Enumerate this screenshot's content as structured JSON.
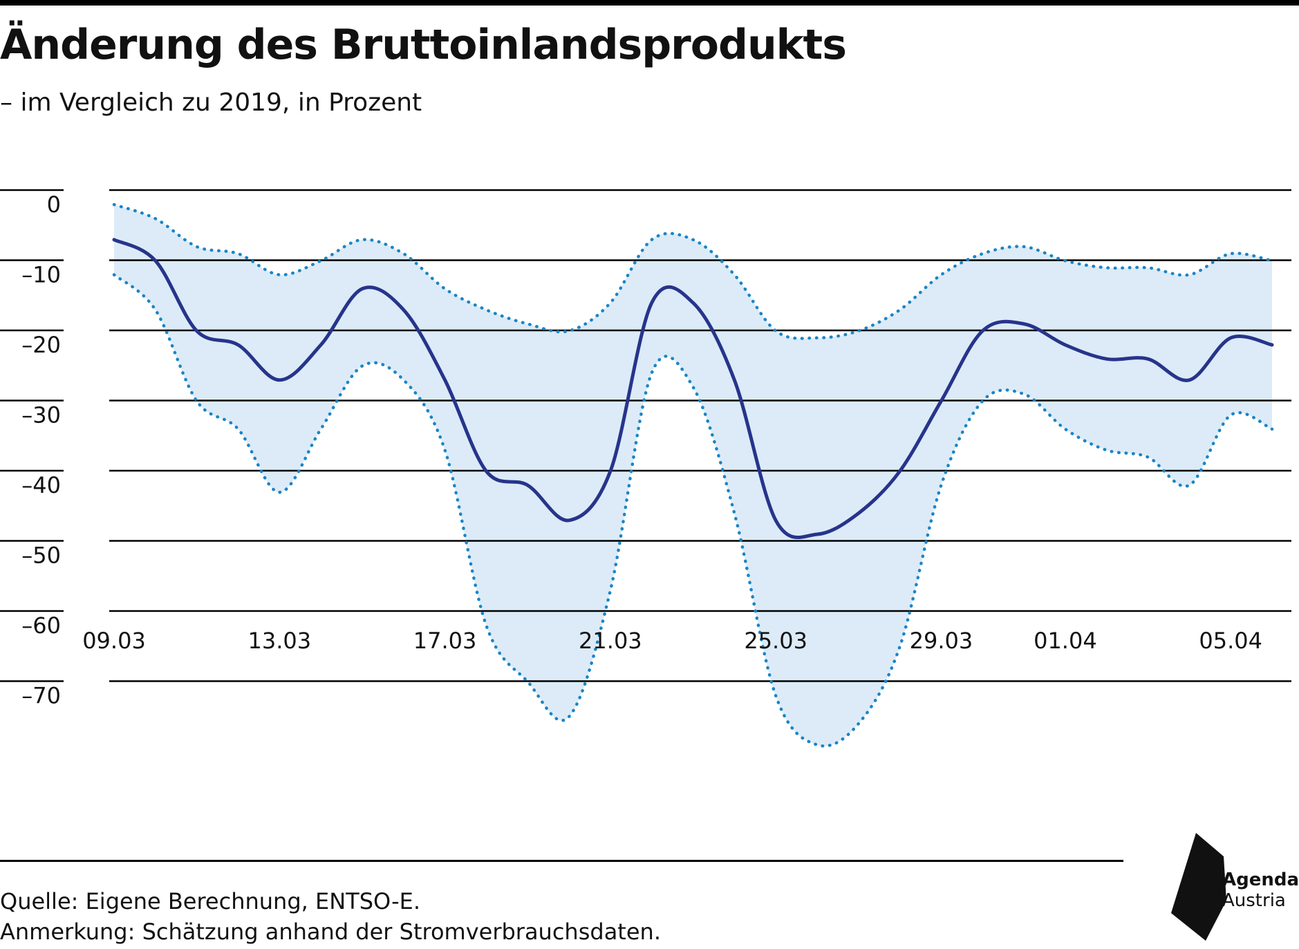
{
  "title": "Änderung des Bruttoinlandsprodukts",
  "subtitle": "– im Vergleich zu 2019, in Prozent",
  "source": "Quelle: Eigene Berechnung, ENTSO-E.",
  "note": "Anmerkung: Schätzung anhand der Stromverbrauchsdaten.",
  "logo": {
    "line1": "Agenda",
    "line2": "Austria",
    "icon": "agenda-austria-logo-shape"
  },
  "colors": {
    "line": "#27348b",
    "band_fill": "#dcebf7",
    "band_border": "#1b84c6",
    "grid": "#000000"
  },
  "chart_data": {
    "type": "line",
    "title": "Änderung des Bruttoinlandsprodukts",
    "subtitle": "– im Vergleich zu 2019, in Prozent",
    "xlabel": "",
    "ylabel": "",
    "ylim": [
      -78,
      2
    ],
    "yticks": [
      0,
      -10,
      -20,
      -30,
      -40,
      -50,
      -60,
      -70
    ],
    "ytick_labels": [
      "0",
      "–10",
      "–20",
      "–30",
      "–40",
      "–50",
      "–60",
      "–70"
    ],
    "xticks": [
      "09.03",
      "13.03",
      "17.03",
      "21.03",
      "25.03",
      "29.03",
      "01.04",
      "05.04"
    ],
    "x": [
      "09.03",
      "10.03",
      "11.03",
      "12.03",
      "13.03",
      "14.03",
      "15.03",
      "16.03",
      "17.03",
      "18.03",
      "19.03",
      "20.03",
      "21.03",
      "22.03",
      "23.03",
      "24.03",
      "25.03",
      "26.03",
      "27.03",
      "28.03",
      "29.03",
      "30.03",
      "31.03",
      "01.04",
      "02.04",
      "03.04",
      "04.04",
      "05.04",
      "06.04"
    ],
    "grid": true,
    "series": [
      {
        "role": "estimate",
        "values": [
          -5,
          -8,
          -18,
          -20,
          -25,
          -20,
          -12,
          -15,
          -25,
          -38,
          -40,
          -45,
          -38,
          -14,
          -14,
          -25,
          -45,
          -47,
          -44,
          -38,
          -28,
          -18,
          -17,
          -20,
          -22,
          -22,
          -25,
          -19,
          -20
        ]
      },
      {
        "role": "upper-bound",
        "values": [
          0,
          -2,
          -6,
          -7,
          -10,
          -8,
          -5,
          -7,
          -12,
          -15,
          -17,
          -18,
          -14,
          -5,
          -5,
          -10,
          -18,
          -19,
          -18,
          -15,
          -10,
          -7,
          -6,
          -8,
          -9,
          -9,
          -10,
          -7,
          -8
        ]
      },
      {
        "role": "lower-bound",
        "values": [
          -10,
          -15,
          -28,
          -32,
          -41,
          -32,
          -23,
          -25,
          -35,
          -60,
          -68,
          -73,
          -55,
          -24,
          -26,
          -44,
          -70,
          -77,
          -74,
          -63,
          -40,
          -28,
          -27,
          -32,
          -35,
          -36,
          -40,
          -30,
          -32
        ]
      }
    ]
  }
}
